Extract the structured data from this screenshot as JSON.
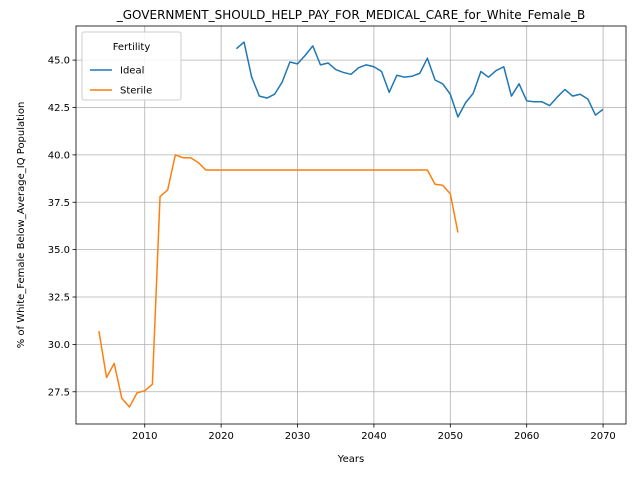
{
  "chart_data": {
    "type": "line",
    "title": "_GOVERNMENT_SHOULD_HELP_PAY_FOR_MEDICAL_CARE_for_White_Female_B",
    "xlabel": "Years",
    "ylabel": "% of White_Female Below_Average_IQ Population",
    "xlim": [
      2001,
      2073
    ],
    "ylim": [
      25.8,
      46.8
    ],
    "xticks": [
      2010,
      2020,
      2030,
      2040,
      2050,
      2060,
      2070
    ],
    "yticks": [
      27.5,
      30.0,
      32.5,
      35.0,
      37.5,
      40.0,
      42.5,
      45.0
    ],
    "ytick_labels": [
      "27.5",
      "30.0",
      "32.5",
      "35.0",
      "37.5",
      "40.0",
      "42.5",
      "45.0"
    ],
    "grid": true,
    "legend": {
      "title": "Fertility",
      "placement": "top-left"
    },
    "series": [
      {
        "name": "Ideal",
        "color": "#1f77b4",
        "x": [
          2022,
          2023,
          2024,
          2025,
          2026,
          2027,
          2028,
          2029,
          2030,
          2031,
          2032,
          2033,
          2034,
          2035,
          2036,
          2037,
          2038,
          2039,
          2040,
          2041,
          2042,
          2043,
          2044,
          2045,
          2046,
          2047,
          2048,
          2049,
          2050,
          2051,
          2052,
          2053,
          2054,
          2055,
          2056,
          2057,
          2058,
          2059,
          2060,
          2061,
          2062,
          2063,
          2064,
          2065,
          2066,
          2067,
          2068,
          2069,
          2070
        ],
        "y": [
          45.6,
          45.95,
          44.1,
          43.1,
          43.0,
          43.2,
          43.85,
          44.9,
          44.8,
          45.25,
          45.75,
          44.75,
          44.85,
          44.5,
          44.35,
          44.25,
          44.6,
          44.75,
          44.65,
          44.4,
          43.3,
          44.2,
          44.1,
          44.15,
          44.3,
          45.1,
          43.95,
          43.75,
          43.2,
          42.0,
          42.75,
          43.25,
          44.4,
          44.1,
          44.45,
          44.65,
          43.1,
          43.75,
          42.85,
          42.8,
          42.8,
          42.6,
          43.05,
          43.45,
          43.1,
          43.2,
          42.95,
          42.1,
          42.4
        ]
      },
      {
        "name": "Sterile",
        "color": "#ff7f0e",
        "x": [
          2004,
          2005,
          2006,
          2007,
          2008,
          2009,
          2010,
          2011,
          2012,
          2013,
          2014,
          2015,
          2016,
          2017,
          2018,
          2019,
          2020,
          2021,
          2022,
          2023,
          2024,
          2025,
          2026,
          2027,
          2028,
          2029,
          2030,
          2031,
          2032,
          2033,
          2034,
          2035,
          2036,
          2037,
          2038,
          2039,
          2040,
          2041,
          2042,
          2043,
          2044,
          2045,
          2046,
          2047,
          2048,
          2049,
          2050,
          2051
        ],
        "y": [
          30.7,
          28.25,
          29.0,
          27.15,
          26.7,
          27.45,
          27.55,
          27.9,
          37.8,
          38.15,
          40.0,
          39.85,
          39.85,
          39.6,
          39.2,
          39.2,
          39.2,
          39.2,
          39.2,
          39.2,
          39.2,
          39.2,
          39.2,
          39.2,
          39.2,
          39.2,
          39.2,
          39.2,
          39.2,
          39.2,
          39.2,
          39.2,
          39.2,
          39.2,
          39.2,
          39.2,
          39.2,
          39.2,
          39.2,
          39.2,
          39.2,
          39.2,
          39.2,
          39.2,
          38.45,
          38.4,
          37.95,
          35.9
        ]
      }
    ]
  }
}
